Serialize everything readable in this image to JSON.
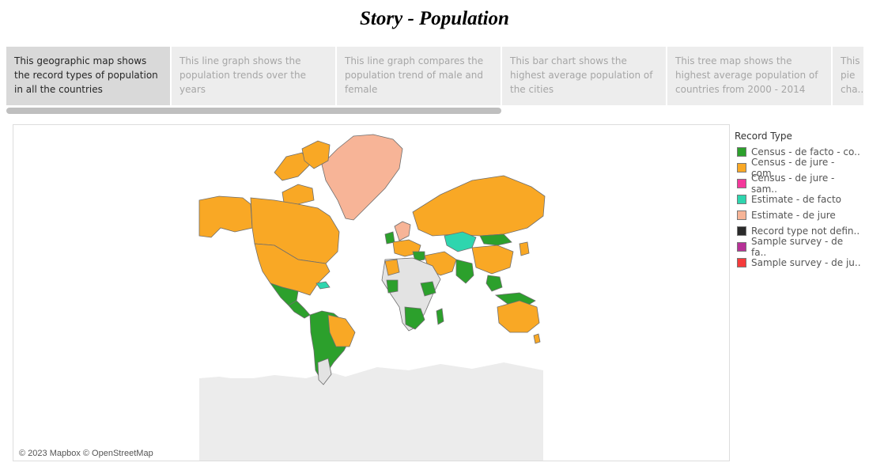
{
  "story": {
    "title": "Story - Population"
  },
  "tabs": [
    {
      "text": "This geographic map shows the record types of population in all the countries",
      "active": true
    },
    {
      "text": "This line graph shows the population trends over the years",
      "active": false
    },
    {
      "text": "This line graph compares the population trend of male and female",
      "active": false
    },
    {
      "text": "This bar chart shows the highest average population of the cities",
      "active": false
    },
    {
      "text": "This tree map shows the highest average population of countries from 2000 - 2014",
      "active": false
    },
    {
      "text": "This pie cha..",
      "active": false
    }
  ],
  "legend": {
    "title": "Record Type",
    "items": [
      {
        "label": "Census - de facto - co..",
        "color": "#2ca02c"
      },
      {
        "label": "Census - de jure - com..",
        "color": "#f9a825"
      },
      {
        "label": "Census - de jure - sam..",
        "color": "#f4389b"
      },
      {
        "label": "Estimate - de facto",
        "color": "#2ed5ae"
      },
      {
        "label": "Estimate - de jure",
        "color": "#f7b497"
      },
      {
        "label": "Record type not defin..",
        "color": "#2a2a2a"
      },
      {
        "label": "Sample survey - de fa..",
        "color": "#b73197"
      },
      {
        "label": "Sample survey - de ju..",
        "color": "#f53b3b"
      }
    ]
  },
  "map": {
    "attribution": "© 2023 Mapbox © OpenStreetMap",
    "colors": {
      "no_data": "#e3e3e3",
      "census_de_facto": "#2ca02c",
      "census_de_jure": "#f9a825",
      "estimate_de_facto": "#2ed5ae",
      "estimate_de_jure": "#f7b497"
    }
  }
}
